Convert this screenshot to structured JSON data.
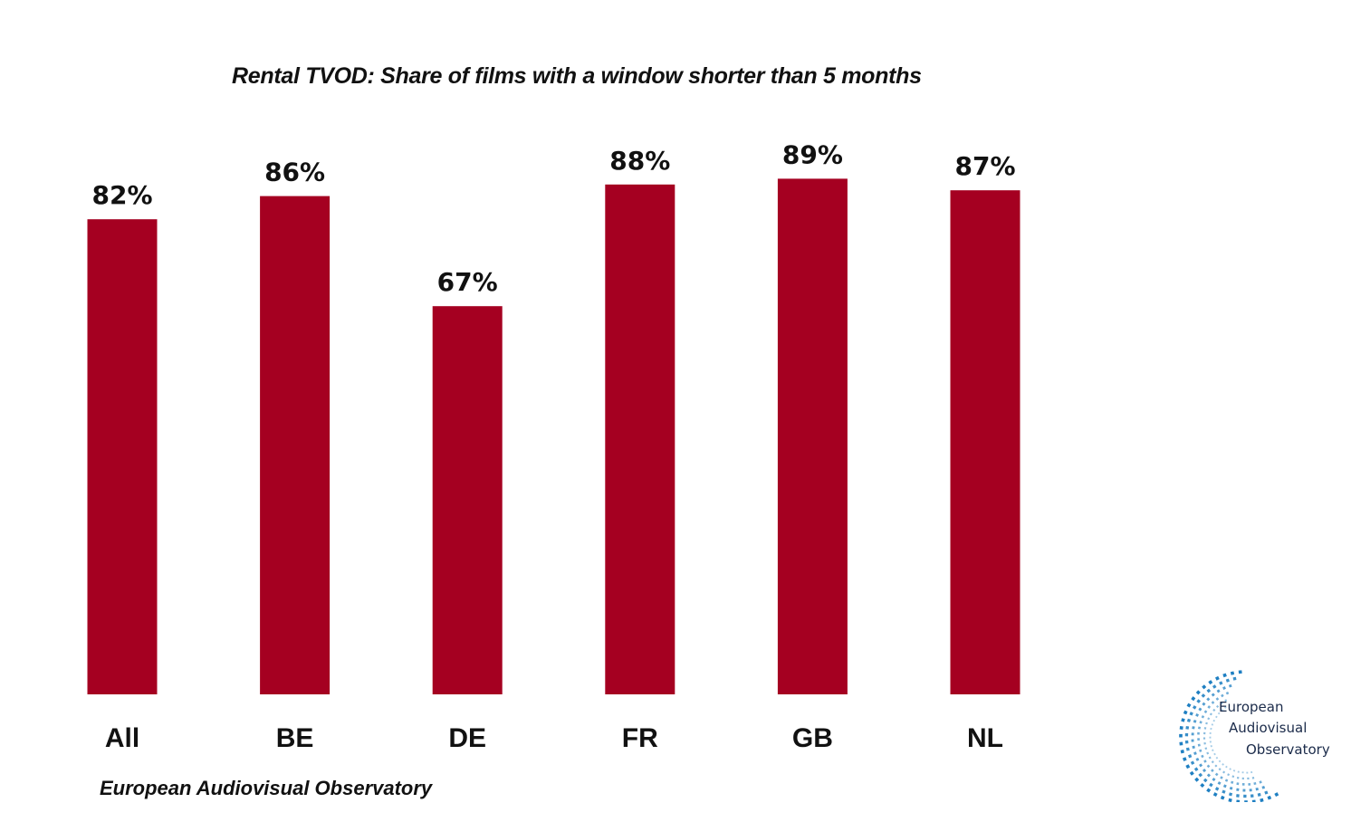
{
  "chart_data": {
    "type": "bar",
    "title": "Rental TVOD: Share of films with a window shorter than 5 months",
    "categories": [
      "All",
      "BE",
      "DE",
      "FR",
      "GB",
      "NL"
    ],
    "values": [
      82,
      86,
      67,
      88,
      89,
      87
    ],
    "value_labels": [
      "82%",
      "86%",
      "67%",
      "88%",
      "89%",
      "87%"
    ],
    "unit": "%",
    "ylim": [
      0,
      100
    ],
    "grid": false,
    "legend": "none",
    "bar_color": "#A50021"
  },
  "source": "European Audiovisual Observatory",
  "logo": {
    "lines": [
      "European",
      "Audiovisual",
      "Observatory"
    ],
    "color": "#1E7FC2"
  }
}
